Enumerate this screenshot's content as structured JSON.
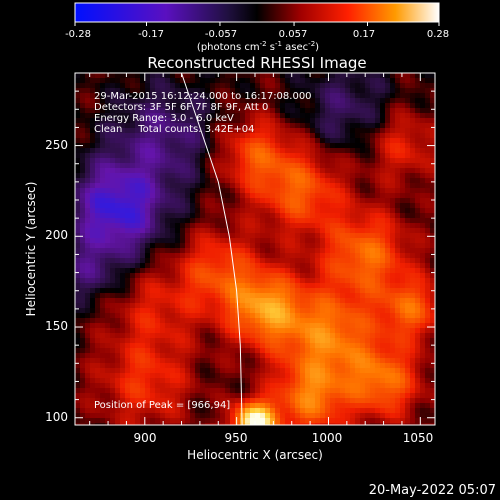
{
  "chart_data": {
    "type": "heatmap",
    "title": "Reconstructed RHESSI Image",
    "xlabel": "Heliocentric X (arcsec)",
    "ylabel": "Heliocentric Y (arcsec)",
    "xlim": [
      862,
      1058
    ],
    "ylim": [
      96,
      290
    ],
    "x_ticks": [
      "900",
      "950",
      "1000",
      "1050"
    ],
    "x_tick_values": [
      900,
      950,
      1000,
      1050
    ],
    "y_ticks": [
      "100",
      "150",
      "200",
      "250"
    ],
    "y_tick_values": [
      100,
      150,
      200,
      250
    ],
    "colorbar": {
      "min": -0.28,
      "max": 0.28,
      "tick_labels": [
        "-0.28",
        "-0.17",
        "-0.057",
        "0.057",
        "0.17",
        "0.28"
      ],
      "tick_values": [
        -0.28,
        -0.17,
        -0.057,
        0.057,
        0.17,
        0.28
      ],
      "unit_label": "(photons cm",
      "unit_sup1": "-2",
      "unit_mid": " s",
      "unit_sup2": "-1",
      "unit_mid2": " asec",
      "unit_sup3": "-2",
      "unit_end": ")"
    },
    "annotations": [
      "29-Mar-2015 16:12:24.000 to 16:17:08.000",
      "Detectors: 3F 5F 6F 7F 8F 9F, Att 0",
      "Energy Range: 3.0 - 6.0 keV",
      "Clean     Total counts: 3.42E+04"
    ],
    "peak_label": "Position of Peak = [966,94]",
    "peak_position": [
      966,
      94
    ],
    "limb_points": [
      [
        920,
        290
      ],
      [
        930,
        260
      ],
      [
        940,
        230
      ],
      [
        946,
        200
      ],
      [
        950,
        170
      ],
      [
        952,
        140
      ],
      [
        953,
        96
      ]
    ],
    "colors": {
      "min": "#1a1aff",
      "negative_mid": "#6a1ab0",
      "zero": "#000000",
      "low": "#8b0000",
      "mid": "#ff2000",
      "high": "#ff9a00",
      "max": "#ffffe8"
    }
  },
  "footer": {
    "date": "20-May-2022 05:07"
  }
}
